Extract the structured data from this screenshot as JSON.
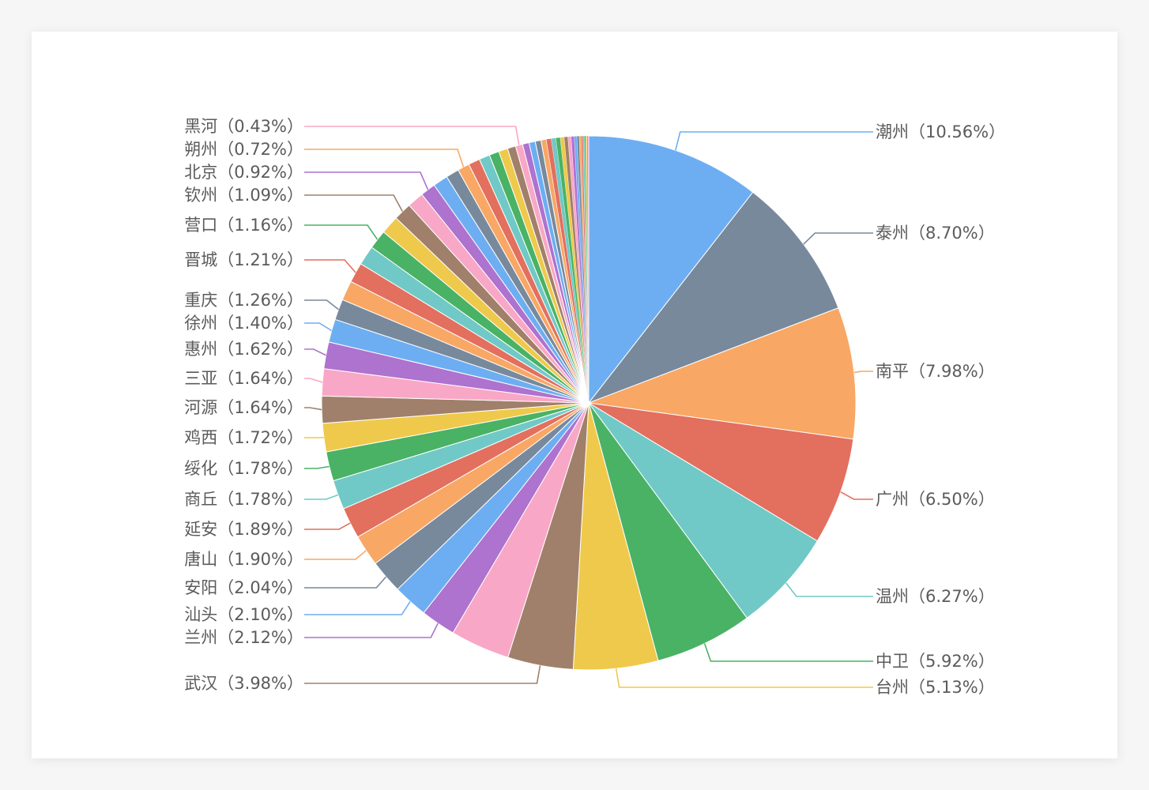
{
  "chart_data": {
    "type": "pie",
    "title": "",
    "label_format": "{name}（{pct}）",
    "labeled": [
      {
        "name": "潮州",
        "pct": "10.56%",
        "value": 10.56,
        "color": "#6daef2"
      },
      {
        "name": "泰州",
        "pct": "8.70%",
        "value": 8.7,
        "color": "#78899c"
      },
      {
        "name": "南平",
        "pct": "7.98%",
        "value": 7.98,
        "color": "#f8a764"
      },
      {
        "name": "广州",
        "pct": "6.50%",
        "value": 6.5,
        "color": "#e36f5f"
      },
      {
        "name": "温州",
        "pct": "6.27%",
        "value": 6.27,
        "color": "#70c9c6"
      },
      {
        "name": "中卫",
        "pct": "5.92%",
        "value": 5.92,
        "color": "#49b265"
      },
      {
        "name": "台州",
        "pct": "5.13%",
        "value": 5.13,
        "color": "#efc94b"
      },
      {
        "name": "武汉",
        "pct": "3.98%",
        "value": 3.98,
        "color": "#a0806a"
      },
      {
        "name": "",
        "pct": "",
        "value": 3.6,
        "color": "#f9a7c6"
      },
      {
        "name": "兰州",
        "pct": "2.12%",
        "value": 2.12,
        "color": "#ae72cf"
      },
      {
        "name": "汕头",
        "pct": "2.10%",
        "value": 2.1,
        "color": "#6daef2"
      },
      {
        "name": "安阳",
        "pct": "2.04%",
        "value": 2.04,
        "color": "#78899c"
      },
      {
        "name": "唐山",
        "pct": "1.90%",
        "value": 1.9,
        "color": "#f8a764"
      },
      {
        "name": "延安",
        "pct": "1.89%",
        "value": 1.89,
        "color": "#e36f5f"
      },
      {
        "name": "商丘",
        "pct": "1.78%",
        "value": 1.78,
        "color": "#70c9c6"
      },
      {
        "name": "绥化",
        "pct": "1.78%",
        "value": 1.78,
        "color": "#49b265"
      },
      {
        "name": "鸡西",
        "pct": "1.72%",
        "value": 1.72,
        "color": "#efc94b"
      },
      {
        "name": "河源",
        "pct": "1.64%",
        "value": 1.64,
        "color": "#a0806a"
      },
      {
        "name": "三亚",
        "pct": "1.64%",
        "value": 1.64,
        "color": "#f9a7c6"
      },
      {
        "name": "惠州",
        "pct": "1.62%",
        "value": 1.62,
        "color": "#ae72cf"
      },
      {
        "name": "徐州",
        "pct": "1.40%",
        "value": 1.4,
        "color": "#6daef2"
      },
      {
        "name": "重庆",
        "pct": "1.26%",
        "value": 1.26,
        "color": "#78899c"
      },
      {
        "name": "",
        "pct": "",
        "value": 1.2,
        "color": "#f8a764"
      },
      {
        "name": "晋城",
        "pct": "1.21%",
        "value": 1.21,
        "color": "#e36f5f"
      },
      {
        "name": "",
        "pct": "",
        "value": 1.18,
        "color": "#70c9c6"
      },
      {
        "name": "营口",
        "pct": "1.16%",
        "value": 1.16,
        "color": "#49b265"
      },
      {
        "name": "",
        "pct": "",
        "value": 1.12,
        "color": "#efc94b"
      },
      {
        "name": "钦州",
        "pct": "1.09%",
        "value": 1.09,
        "color": "#a0806a"
      },
      {
        "name": "",
        "pct": "",
        "value": 1.0,
        "color": "#f9a7c6"
      },
      {
        "name": "北京",
        "pct": "0.92%",
        "value": 0.92,
        "color": "#ae72cf"
      },
      {
        "name": "",
        "pct": "",
        "value": 0.9,
        "color": "#6daef2"
      },
      {
        "name": "",
        "pct": "",
        "value": 0.8,
        "color": "#78899c"
      },
      {
        "name": "朔州",
        "pct": "0.72%",
        "value": 0.72,
        "color": "#f8a764"
      },
      {
        "name": "",
        "pct": "",
        "value": 0.7,
        "color": "#e36f5f"
      },
      {
        "name": "",
        "pct": "",
        "value": 0.65,
        "color": "#70c9c6"
      },
      {
        "name": "",
        "pct": "",
        "value": 0.6,
        "color": "#49b265"
      },
      {
        "name": "",
        "pct": "",
        "value": 0.55,
        "color": "#efc94b"
      },
      {
        "name": "",
        "pct": "",
        "value": 0.5,
        "color": "#a0806a"
      },
      {
        "name": "黑河",
        "pct": "0.43%",
        "value": 0.43,
        "color": "#f9a7c6"
      },
      {
        "name": "",
        "pct": "",
        "value": 0.4,
        "color": "#ae72cf"
      },
      {
        "name": "",
        "pct": "",
        "value": 0.38,
        "color": "#6daef2"
      },
      {
        "name": "",
        "pct": "",
        "value": 0.35,
        "color": "#78899c"
      },
      {
        "name": "",
        "pct": "",
        "value": 0.32,
        "color": "#f8a764"
      },
      {
        "name": "",
        "pct": "",
        "value": 0.3,
        "color": "#e36f5f"
      },
      {
        "name": "",
        "pct": "",
        "value": 0.28,
        "color": "#70c9c6"
      },
      {
        "name": "",
        "pct": "",
        "value": 0.26,
        "color": "#49b265"
      },
      {
        "name": "",
        "pct": "",
        "value": 0.24,
        "color": "#efc94b"
      },
      {
        "name": "",
        "pct": "",
        "value": 0.22,
        "color": "#a0806a"
      },
      {
        "name": "",
        "pct": "",
        "value": 0.2,
        "color": "#f9a7c6"
      },
      {
        "name": "",
        "pct": "",
        "value": 0.18,
        "color": "#ae72cf"
      },
      {
        "name": "",
        "pct": "",
        "value": 0.16,
        "color": "#6daef2"
      },
      {
        "name": "",
        "pct": "",
        "value": 0.14,
        "color": "#78899c"
      },
      {
        "name": "",
        "pct": "",
        "value": 0.12,
        "color": "#f8a764"
      },
      {
        "name": "",
        "pct": "",
        "value": 0.1,
        "color": "#e36f5f"
      },
      {
        "name": "",
        "pct": "",
        "value": 0.09,
        "color": "#70c9c6"
      },
      {
        "name": "",
        "pct": "",
        "value": 0.08,
        "color": "#49b265"
      },
      {
        "name": "",
        "pct": "",
        "value": 0.07,
        "color": "#efc94b"
      },
      {
        "name": "",
        "pct": "",
        "value": 0.06,
        "color": "#a0806a"
      },
      {
        "name": "",
        "pct": "",
        "value": 0.05,
        "color": "#f9a7c6"
      }
    ]
  }
}
